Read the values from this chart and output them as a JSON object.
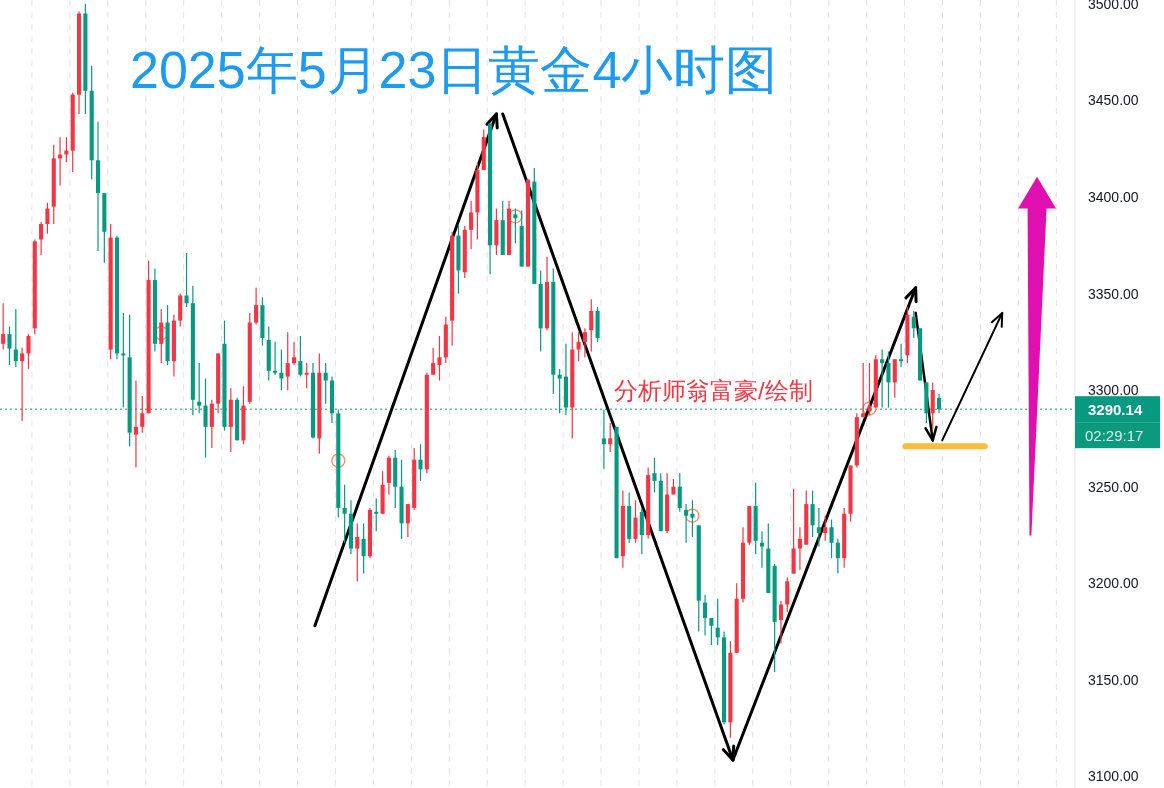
{
  "chart_data": {
    "type": "candlestick",
    "title": "2025年5月23日黄金4小时图",
    "categories": [
      null,
      null,
      null,
      null,
      null,
      null,
      null,
      null,
      null,
      null,
      null,
      null,
      null,
      null,
      null,
      null,
      null,
      null,
      null,
      null,
      null,
      null,
      null,
      null,
      null,
      null,
      null,
      null,
      null,
      null,
      null,
      null,
      null,
      null,
      null,
      null,
      null,
      null,
      null,
      null,
      null,
      null,
      null,
      null,
      null,
      null,
      null,
      null,
      null,
      null,
      null,
      null,
      null,
      null,
      null,
      null,
      null,
      null,
      null,
      null,
      null,
      null,
      null,
      null,
      null,
      null,
      null,
      null,
      null,
      null,
      null,
      null,
      null,
      null,
      null,
      null,
      null,
      null,
      null,
      null,
      null,
      null,
      null,
      null,
      null,
      null,
      null,
      null,
      null,
      null,
      null,
      null,
      null,
      null,
      null,
      null,
      null,
      null,
      null,
      null,
      null,
      null,
      null,
      null,
      null,
      null,
      null,
      null,
      null,
      null,
      null,
      null,
      null,
      null,
      null,
      null,
      null,
      null,
      null,
      null,
      null,
      null,
      null,
      null,
      null,
      null,
      null,
      null,
      null,
      null,
      null,
      null,
      null,
      null,
      null,
      null,
      null,
      null,
      null,
      null,
      null,
      null,
      null,
      null,
      null,
      null,
      null,
      null,
      null,
      null,
      null,
      null,
      null,
      null,
      null,
      null,
      null,
      null,
      null,
      null,
      null,
      null,
      null,
      null,
      null,
      null,
      null,
      null,
      null,
      null
    ],
    "ohlc": [
      [
        3324,
        3345,
        3321,
        3329
      ],
      [
        3329,
        3333,
        3313,
        3321.5
      ],
      [
        3321,
        3342,
        3312,
        3315
      ],
      [
        3315,
        3322,
        3284,
        3319
      ],
      [
        3319,
        3329,
        3311,
        3328
      ],
      [
        3332,
        3378,
        3329,
        3377
      ],
      [
        3378,
        3387,
        3370,
        3386
      ],
      [
        3386,
        3397,
        3381,
        3394
      ],
      [
        3395,
        3427,
        3386,
        3420
      ],
      [
        3420,
        3431,
        3406,
        3422
      ],
      [
        3422,
        3431,
        3418,
        3424
      ],
      [
        3424,
        3454,
        3413,
        3453
      ],
      [
        3453,
        3496,
        3443,
        3495
      ],
      [
        3495,
        3500,
        3443,
        3455
      ],
      [
        3455,
        3468,
        3409,
        3419
      ],
      [
        3419,
        3439,
        3372,
        3402
      ],
      [
        3402,
        3402,
        3366,
        3382
      ],
      [
        3321,
        3386,
        3316,
        3379
      ],
      [
        3379,
        3380,
        3316,
        3319
      ],
      [
        3319,
        3340,
        3291,
        3318
      ],
      [
        3317,
        3339,
        3271,
        3278
      ],
      [
        3277,
        3305,
        3260,
        3281
      ],
      [
        3281,
        3297,
        3278,
        3288
      ],
      [
        3288,
        3367,
        3288,
        3357
      ],
      [
        3357,
        3363,
        3320,
        3324
      ],
      [
        3324,
        3342,
        3314,
        3335
      ],
      [
        3335,
        3344,
        3313,
        3315
      ],
      [
        3315,
        3339,
        3307,
        3336
      ],
      [
        3336,
        3350,
        3333,
        3349
      ],
      [
        3349,
        3371,
        3343,
        3345
      ],
      [
        3345,
        3354,
        3287,
        3295
      ],
      [
        3294,
        3314,
        3288,
        3292
      ],
      [
        3292,
        3306,
        3265,
        3281
      ],
      [
        3281,
        3295,
        3270,
        3293
      ],
      [
        3293,
        3319,
        3288,
        3319
      ],
      [
        3324,
        3336,
        3279,
        3281
      ],
      [
        3281,
        3301,
        3268,
        3295
      ],
      [
        3295,
        3296,
        3274,
        3274
      ],
      [
        3274,
        3302,
        3272,
        3292
      ],
      [
        3294,
        3340,
        3293,
        3335
      ],
      [
        3335,
        3353,
        3334,
        3344
      ],
      [
        3344,
        3348,
        3323,
        3327
      ],
      [
        3326,
        3333,
        3305,
        3310
      ],
      [
        3310,
        3325,
        3308,
        3309
      ],
      [
        3309,
        3321,
        3300,
        3306
      ],
      [
        3307,
        3330,
        3300,
        3314
      ],
      [
        3314,
        3325,
        3313,
        3317
      ],
      [
        3315,
        3328,
        3307,
        3308
      ],
      [
        3308,
        3314,
        3301,
        3309
      ],
      [
        3309,
        3314,
        3275,
        3275.5
      ],
      [
        3275,
        3319,
        3267,
        3309
      ],
      [
        3309,
        3314,
        3293,
        3305
      ],
      [
        3305,
        3307,
        3283,
        3288
      ],
      [
        3288,
        3290,
        3234,
        3239
      ],
      [
        3239,
        3251,
        3221,
        3236
      ],
      [
        3236,
        3243,
        3215,
        3218
      ],
      [
        3218,
        3231,
        3201,
        3224
      ],
      [
        3223,
        3231,
        3205,
        3214
      ],
      [
        3214,
        3239,
        3213,
        3238
      ],
      [
        3237,
        3244,
        3227,
        3236
      ],
      [
        3236,
        3258,
        3236,
        3251
      ],
      [
        3252,
        3266,
        3246,
        3265
      ],
      [
        3265,
        3269,
        3239,
        3250
      ],
      [
        3250,
        3264,
        3223,
        3231
      ],
      [
        3231,
        3241,
        3224,
        3241
      ],
      [
        3239,
        3270,
        3238,
        3264
      ],
      [
        3264,
        3272,
        3253,
        3259
      ],
      [
        3259,
        3309,
        3257,
        3308
      ],
      [
        3308,
        3322,
        3308,
        3314
      ],
      [
        3313,
        3328,
        3305,
        3317
      ],
      [
        3317,
        3338,
        3314,
        3334
      ],
      [
        3336,
        3382,
        3323,
        3380
      ],
      [
        3380,
        3386,
        3350,
        3362
      ],
      [
        3361,
        3385,
        3358,
        3383
      ],
      [
        3383,
        3398,
        3373,
        3392
      ],
      [
        3392,
        3418,
        3378,
        3414
      ],
      [
        3414,
        3435,
        3414,
        3431
      ],
      [
        3438,
        3438,
        3360,
        3375
      ],
      [
        3375,
        3394,
        3370,
        3388
      ],
      [
        3388,
        3398,
        3370,
        3370
      ],
      [
        3370,
        3398,
        3370,
        3394
      ],
      [
        3391,
        3394,
        3376,
        3389
      ],
      [
        3385,
        3393,
        3364,
        3364
      ],
      [
        3364,
        3409,
        3364,
        3409
      ],
      [
        3408,
        3415,
        3355,
        3355
      ],
      [
        3355,
        3362,
        3320,
        3332
      ],
      [
        3332,
        3369,
        3331,
        3356
      ],
      [
        3356,
        3363,
        3298,
        3308
      ],
      [
        3308,
        3311,
        3288,
        3306
      ],
      [
        3307,
        3324,
        3287,
        3291
      ],
      [
        3291,
        3330,
        3275,
        3321
      ],
      [
        3321,
        3330,
        3315,
        3325
      ],
      [
        3325,
        3332,
        3317,
        3330
      ],
      [
        3331,
        3347,
        3320,
        3341
      ],
      [
        3341,
        3343,
        3325,
        3327
      ],
      [
        3275,
        3290,
        3259,
        3272
      ],
      [
        3272,
        3283,
        3268,
        3275
      ],
      [
        3281,
        3281,
        3213,
        3213
      ],
      [
        3214,
        3248,
        3208,
        3240
      ],
      [
        3240,
        3247,
        3221,
        3223
      ],
      [
        3223,
        3243,
        3221,
        3234
      ],
      [
        3237,
        3239,
        3215,
        3225
      ],
      [
        3225,
        3260,
        3223,
        3256
      ],
      [
        3257,
        3265,
        3247,
        3253
      ],
      [
        3253,
        3257,
        3227,
        3227
      ],
      [
        3227,
        3257,
        3226,
        3246
      ],
      [
        3246,
        3254,
        3246,
        3250
      ],
      [
        3250,
        3257,
        3237,
        3239
      ],
      [
        3238,
        3241,
        3221,
        3235
      ],
      [
        3236,
        3243,
        3224,
        3234
      ],
      [
        3230,
        3230,
        3175,
        3191
      ],
      [
        3190,
        3194,
        3173,
        3182
      ],
      [
        3182,
        3182,
        3168,
        3178
      ],
      [
        3177,
        3192,
        3168,
        3172
      ],
      [
        3172,
        3175,
        3127,
        3128
      ],
      [
        3128,
        3170,
        3120,
        3164
      ],
      [
        3164,
        3200,
        3164,
        3192
      ],
      [
        3192,
        3229,
        3190,
        3221
      ],
      [
        3221,
        3240,
        3220,
        3240
      ],
      [
        3240,
        3252,
        3215,
        3222
      ],
      [
        3221,
        3227,
        3208,
        3219
      ],
      [
        3218,
        3231,
        3195,
        3195
      ],
      [
        3209,
        3210,
        3154,
        3180
      ],
      [
        3181,
        3191,
        3169,
        3189
      ],
      [
        3189,
        3203,
        3185,
        3201
      ],
      [
        3205,
        3249,
        3205,
        3218
      ],
      [
        3218,
        3229,
        3207,
        3223
      ],
      [
        3220,
        3248,
        3220,
        3241
      ],
      [
        3241,
        3248,
        3224,
        3230
      ],
      [
        3229,
        3239,
        3219,
        3226
      ],
      [
        3226,
        3235,
        3222,
        3229
      ],
      [
        3229,
        3233,
        3213,
        3221
      ],
      [
        3221,
        3223,
        3205,
        3213
      ],
      [
        3213,
        3239,
        3208,
        3236
      ],
      [
        3236,
        3261,
        3232,
        3261
      ],
      [
        3261,
        3288,
        3260,
        3286
      ],
      [
        3286,
        3314,
        3286,
        3288
      ],
      [
        3289,
        3314,
        3287,
        3292
      ],
      [
        3291,
        3318,
        3291,
        3316
      ],
      [
        3316,
        3321,
        3291,
        3314
      ],
      [
        3314,
        3320,
        3291,
        3304
      ],
      [
        3304,
        3316,
        3296,
        3316
      ],
      [
        3316,
        3324,
        3312,
        3315
      ],
      [
        3318,
        3343,
        3314,
        3339
      ],
      [
        3338,
        3341,
        3327,
        3332
      ],
      [
        3332,
        3332,
        3305,
        3305
      ],
      [
        3304,
        3304,
        3283,
        3288
      ],
      [
        3288,
        3304,
        3280,
        3300
      ],
      [
        3296,
        3298,
        3288,
        3290.14
      ],
      null,
      null,
      null,
      null,
      null,
      null,
      null,
      null,
      null,
      null,
      null,
      null,
      null,
      null,
      null,
      null,
      null,
      null,
      null,
      null,
      null
    ],
    "ylim": [
      3094,
      3502
    ],
    "yticks": [
      {
        "value": 3100,
        "label": "3100.00"
      },
      {
        "value": 3150,
        "label": "3150.00"
      },
      {
        "value": 3200,
        "label": "3200.00"
      },
      {
        "value": 3250,
        "label": "3250.00"
      },
      {
        "value": 3300,
        "label": "3300.00"
      },
      {
        "value": 3350,
        "label": "3350.00"
      },
      {
        "value": 3400,
        "label": "3400.00"
      },
      {
        "value": 3450,
        "label": "3450.00"
      },
      {
        "value": 3500,
        "label": "3500.00"
      }
    ],
    "ref_lines": [
      {
        "axis": "y",
        "value": 3290.14,
        "label": "3290.14",
        "color": "#089981",
        "line_style": "dotted"
      }
    ],
    "annotations": [
      "分析师翁富豪/绘制",
      "02:29:17"
    ],
    "tick_labels": "y"
  }
}
